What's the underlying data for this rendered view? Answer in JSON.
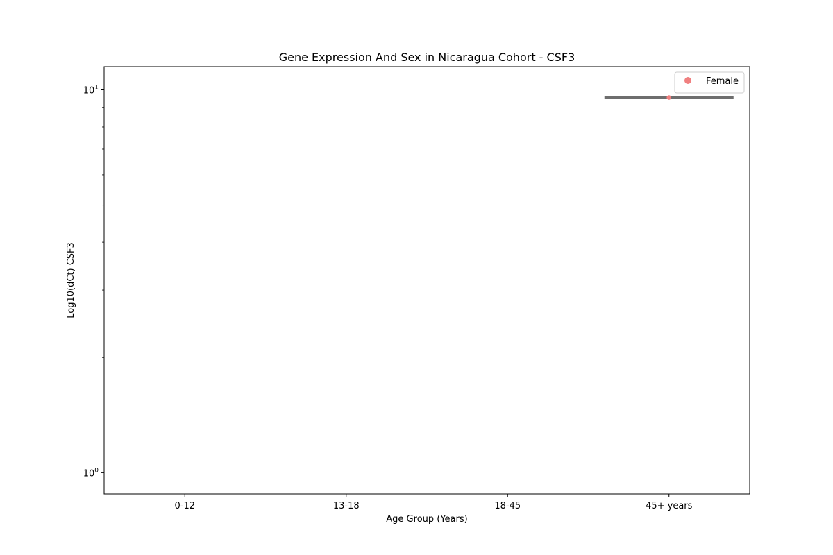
{
  "chart_data": {
    "type": "scatter",
    "title": "Gene Expression And Sex in Nicaragua Cohort - CSF3",
    "xlabel": "Age Group (Years)",
    "ylabel": "Log10(dCt) CSF3",
    "categories": [
      "0-12",
      "13-18",
      "18-45",
      "45+ years"
    ],
    "y_scale": "log",
    "ylim": [
      0.88,
      11.5
    ],
    "y_ticks": [
      {
        "value": 1,
        "base": "10",
        "exp": "0"
      },
      {
        "value": 10,
        "base": "10",
        "exp": "1"
      }
    ],
    "series": [
      {
        "name": "Female",
        "color": "#f08080",
        "points": [
          {
            "category": "45+ years",
            "y": 9.55
          }
        ]
      }
    ],
    "summary_lines": [
      {
        "category": "45+ years",
        "y": 9.55,
        "color": "#6e6e6e"
      }
    ],
    "legend_position": "top-right",
    "grid": false
  }
}
